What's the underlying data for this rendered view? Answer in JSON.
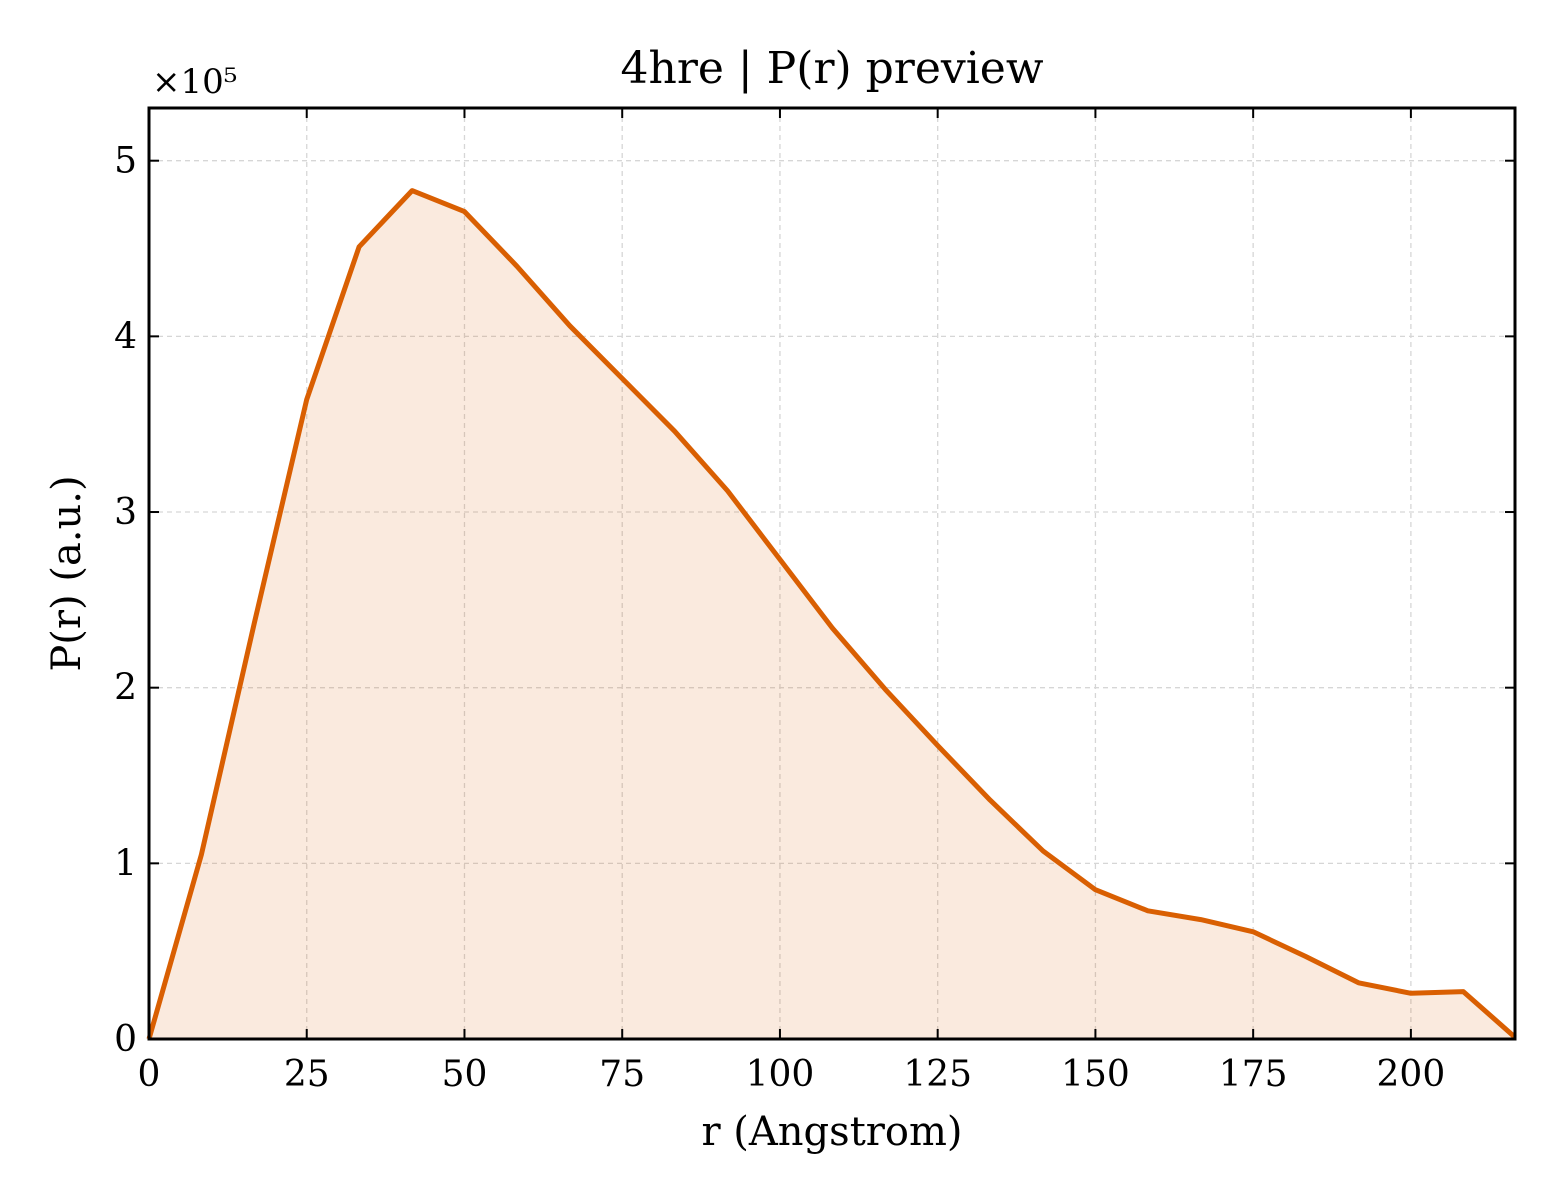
{
  "chart_data": {
    "type": "area",
    "title": "4hre | P(r) preview",
    "xlabel": "r (Angstrom)",
    "ylabel": "P(r) (a.u.)",
    "y_multiplier_label": "×10⁵",
    "xlim": [
      0,
      216.5
    ],
    "ylim": [
      0,
      5.3
    ],
    "x_ticks": [
      0,
      25,
      50,
      75,
      100,
      125,
      150,
      175,
      200
    ],
    "x_tick_labels": [
      "0",
      "25",
      "50",
      "75",
      "100",
      "125",
      "150",
      "175",
      "200"
    ],
    "y_ticks": [
      0,
      1,
      2,
      3,
      4,
      5
    ],
    "y_tick_labels": [
      "0",
      "1",
      "2",
      "3",
      "4",
      "5"
    ],
    "grid": true,
    "series": [
      {
        "color": "#d95f02",
        "fill_color": "#d95f02",
        "fill_opacity": 0.13,
        "x": [
          0,
          8.3,
          16.7,
          25,
          33.3,
          41.7,
          50,
          58.3,
          66.7,
          75,
          83.3,
          91.7,
          100,
          108.3,
          116.7,
          125,
          133.3,
          141.7,
          150,
          158.3,
          166.7,
          175,
          183.3,
          191.7,
          200,
          208.3,
          216.5
        ],
        "y": [
          0,
          1.05,
          2.37,
          3.64,
          4.51,
          4.83,
          4.71,
          4.4,
          4.06,
          3.76,
          3.46,
          3.12,
          2.73,
          2.34,
          1.99,
          1.67,
          1.36,
          1.07,
          0.85,
          0.73,
          0.68,
          0.61,
          0.47,
          0.32,
          0.26,
          0.27,
          0.01
        ]
      }
    ]
  }
}
